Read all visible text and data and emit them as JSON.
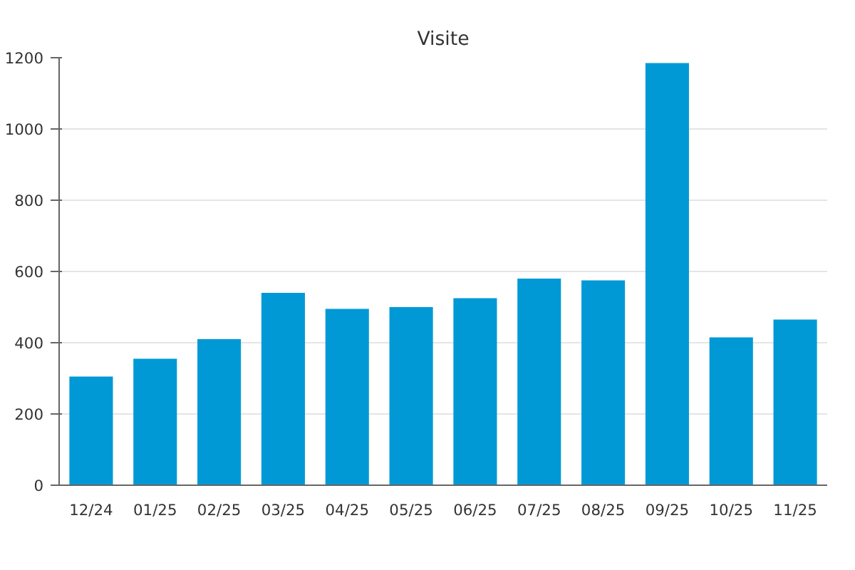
{
  "chart_data": {
    "type": "bar",
    "title": "Visite",
    "categories": [
      "12/24",
      "01/25",
      "02/25",
      "03/25",
      "04/25",
      "05/25",
      "06/25",
      "07/25",
      "08/25",
      "09/25",
      "10/25",
      "11/25"
    ],
    "values": [
      305,
      355,
      410,
      540,
      495,
      500,
      525,
      580,
      575,
      1185,
      415,
      465
    ],
    "color": "#0099d6",
    "ylim": [
      0,
      1200
    ],
    "yticks": [
      0,
      200,
      400,
      600,
      800,
      1000,
      1200
    ],
    "grid": "y"
  }
}
